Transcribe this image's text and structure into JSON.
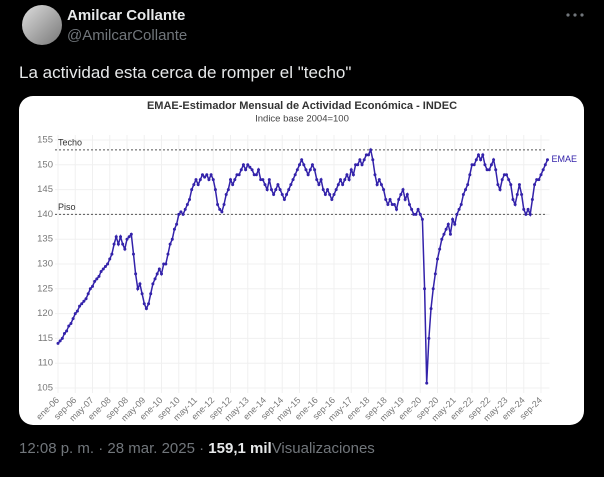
{
  "tweet": {
    "author": "Amilcar Collante",
    "handle": "@AmilcarCollante",
    "text": "La actividad esta cerca de romper el  \"techo\"",
    "time": "12:08 p. m.",
    "separator": "·",
    "date": "28 mar. 2025",
    "views": "159,1 mil",
    "views_label": "Visualizaciones"
  },
  "chart_data": {
    "type": "line",
    "title": "EMAE-Estimador Mensual de Actividad Económica - INDEC",
    "subtitle": "Indice base 2004=100",
    "categories": [
      "ene-06",
      null,
      null,
      null,
      null,
      null,
      null,
      null,
      "sep-06",
      null,
      null,
      null,
      null,
      null,
      null,
      null,
      "may-07",
      null,
      null,
      null,
      null,
      null,
      null,
      null,
      "ene-08",
      null,
      null,
      null,
      null,
      null,
      null,
      null,
      "sep-08",
      null,
      null,
      null,
      null,
      null,
      null,
      null,
      "may-09",
      null,
      null,
      null,
      null,
      null,
      null,
      null,
      "ene-10",
      null,
      null,
      null,
      null,
      null,
      null,
      null,
      "sep-10",
      null,
      null,
      null,
      null,
      null,
      null,
      null,
      "may-11",
      null,
      null,
      null,
      null,
      null,
      null,
      null,
      "ene-12",
      null,
      null,
      null,
      null,
      null,
      null,
      null,
      "sep-12",
      null,
      null,
      null,
      null,
      null,
      null,
      null,
      "may-13",
      null,
      null,
      null,
      null,
      null,
      null,
      null,
      "ene-14",
      null,
      null,
      null,
      null,
      null,
      null,
      null,
      "sep-14",
      null,
      null,
      null,
      null,
      null,
      null,
      null,
      "may-15",
      null,
      null,
      null,
      null,
      null,
      null,
      null,
      "ene-16",
      null,
      null,
      null,
      null,
      null,
      null,
      null,
      "sep-16",
      null,
      null,
      null,
      null,
      null,
      null,
      null,
      "may-17",
      null,
      null,
      null,
      null,
      null,
      null,
      null,
      "ene-18",
      null,
      null,
      null,
      null,
      null,
      null,
      null,
      "sep-18",
      null,
      null,
      null,
      null,
      null,
      null,
      null,
      "may-19",
      null,
      null,
      null,
      null,
      null,
      null,
      null,
      "ene-20",
      null,
      null,
      null,
      null,
      null,
      null,
      null,
      "sep-20",
      null,
      null,
      null,
      null,
      null,
      null,
      null,
      "may-21",
      null,
      null,
      null,
      null,
      null,
      null,
      null,
      "ene-22",
      null,
      null,
      null,
      null,
      null,
      null,
      null,
      "sep-22",
      null,
      null,
      null,
      null,
      null,
      null,
      null,
      "may-23",
      null,
      null,
      null,
      null,
      null,
      null,
      null,
      "ene-24",
      null,
      null,
      null,
      null,
      null,
      null,
      null,
      "sep-24",
      null,
      null,
      null
    ],
    "series": [
      {
        "name": "EMAE",
        "color": "#3322aa",
        "values": [
          114,
          114.5,
          115,
          116,
          116.5,
          117.5,
          118,
          119,
          120,
          120.5,
          121.5,
          122,
          122.5,
          123,
          124,
          125,
          125.5,
          126.5,
          127,
          127.5,
          128.5,
          129,
          129.5,
          130,
          131,
          132,
          134,
          135.5,
          134,
          135.5,
          134,
          133,
          135,
          135.5,
          136,
          132,
          128,
          125,
          126,
          124,
          122,
          121,
          122,
          124,
          126,
          127,
          128,
          129,
          128,
          130,
          130,
          132,
          134,
          135,
          137,
          138,
          140,
          140.5,
          140,
          141,
          142,
          143,
          145,
          146,
          147,
          146,
          147,
          148,
          147.5,
          148,
          147,
          148,
          147,
          145,
          142,
          141,
          140.5,
          142,
          144,
          145,
          147,
          146,
          147,
          148,
          148,
          149,
          150,
          149,
          150,
          149.5,
          149,
          148,
          148,
          149,
          147,
          147,
          146,
          145,
          147,
          145,
          144,
          145,
          146,
          145,
          144,
          143,
          144,
          145,
          146,
          147,
          148,
          149,
          150,
          151,
          150,
          149,
          148,
          149,
          150,
          149,
          147,
          146,
          147,
          145,
          144,
          145,
          144,
          143,
          144,
          145,
          146,
          147,
          146,
          147,
          148,
          147,
          149,
          148,
          150,
          150,
          151,
          150,
          151,
          152,
          152,
          153,
          151,
          148,
          146,
          147,
          146,
          145,
          143,
          142,
          143,
          142,
          142,
          141,
          143,
          144,
          145,
          143,
          144,
          142,
          141,
          140,
          140,
          141,
          140,
          139,
          125,
          106,
          115,
          121,
          125,
          128,
          131,
          133,
          135,
          136,
          137,
          138,
          136,
          139,
          138,
          140,
          141,
          142,
          144,
          145,
          146,
          148,
          150,
          150,
          151,
          152,
          151,
          152,
          150,
          149,
          149,
          150,
          151,
          149,
          146,
          145,
          147,
          148,
          148,
          147,
          146,
          143,
          142,
          144,
          146,
          144,
          141,
          140,
          141,
          140,
          143,
          146,
          147,
          147,
          148,
          149,
          150,
          151
        ]
      }
    ],
    "ylim": [
      104,
      156
    ],
    "yticks": [
      105,
      110,
      115,
      120,
      125,
      130,
      135,
      140,
      145,
      150,
      155
    ],
    "grid": true,
    "annotations": [
      {
        "label": "Techo",
        "value": 153
      },
      {
        "label": "Piso",
        "value": 140
      }
    ]
  }
}
